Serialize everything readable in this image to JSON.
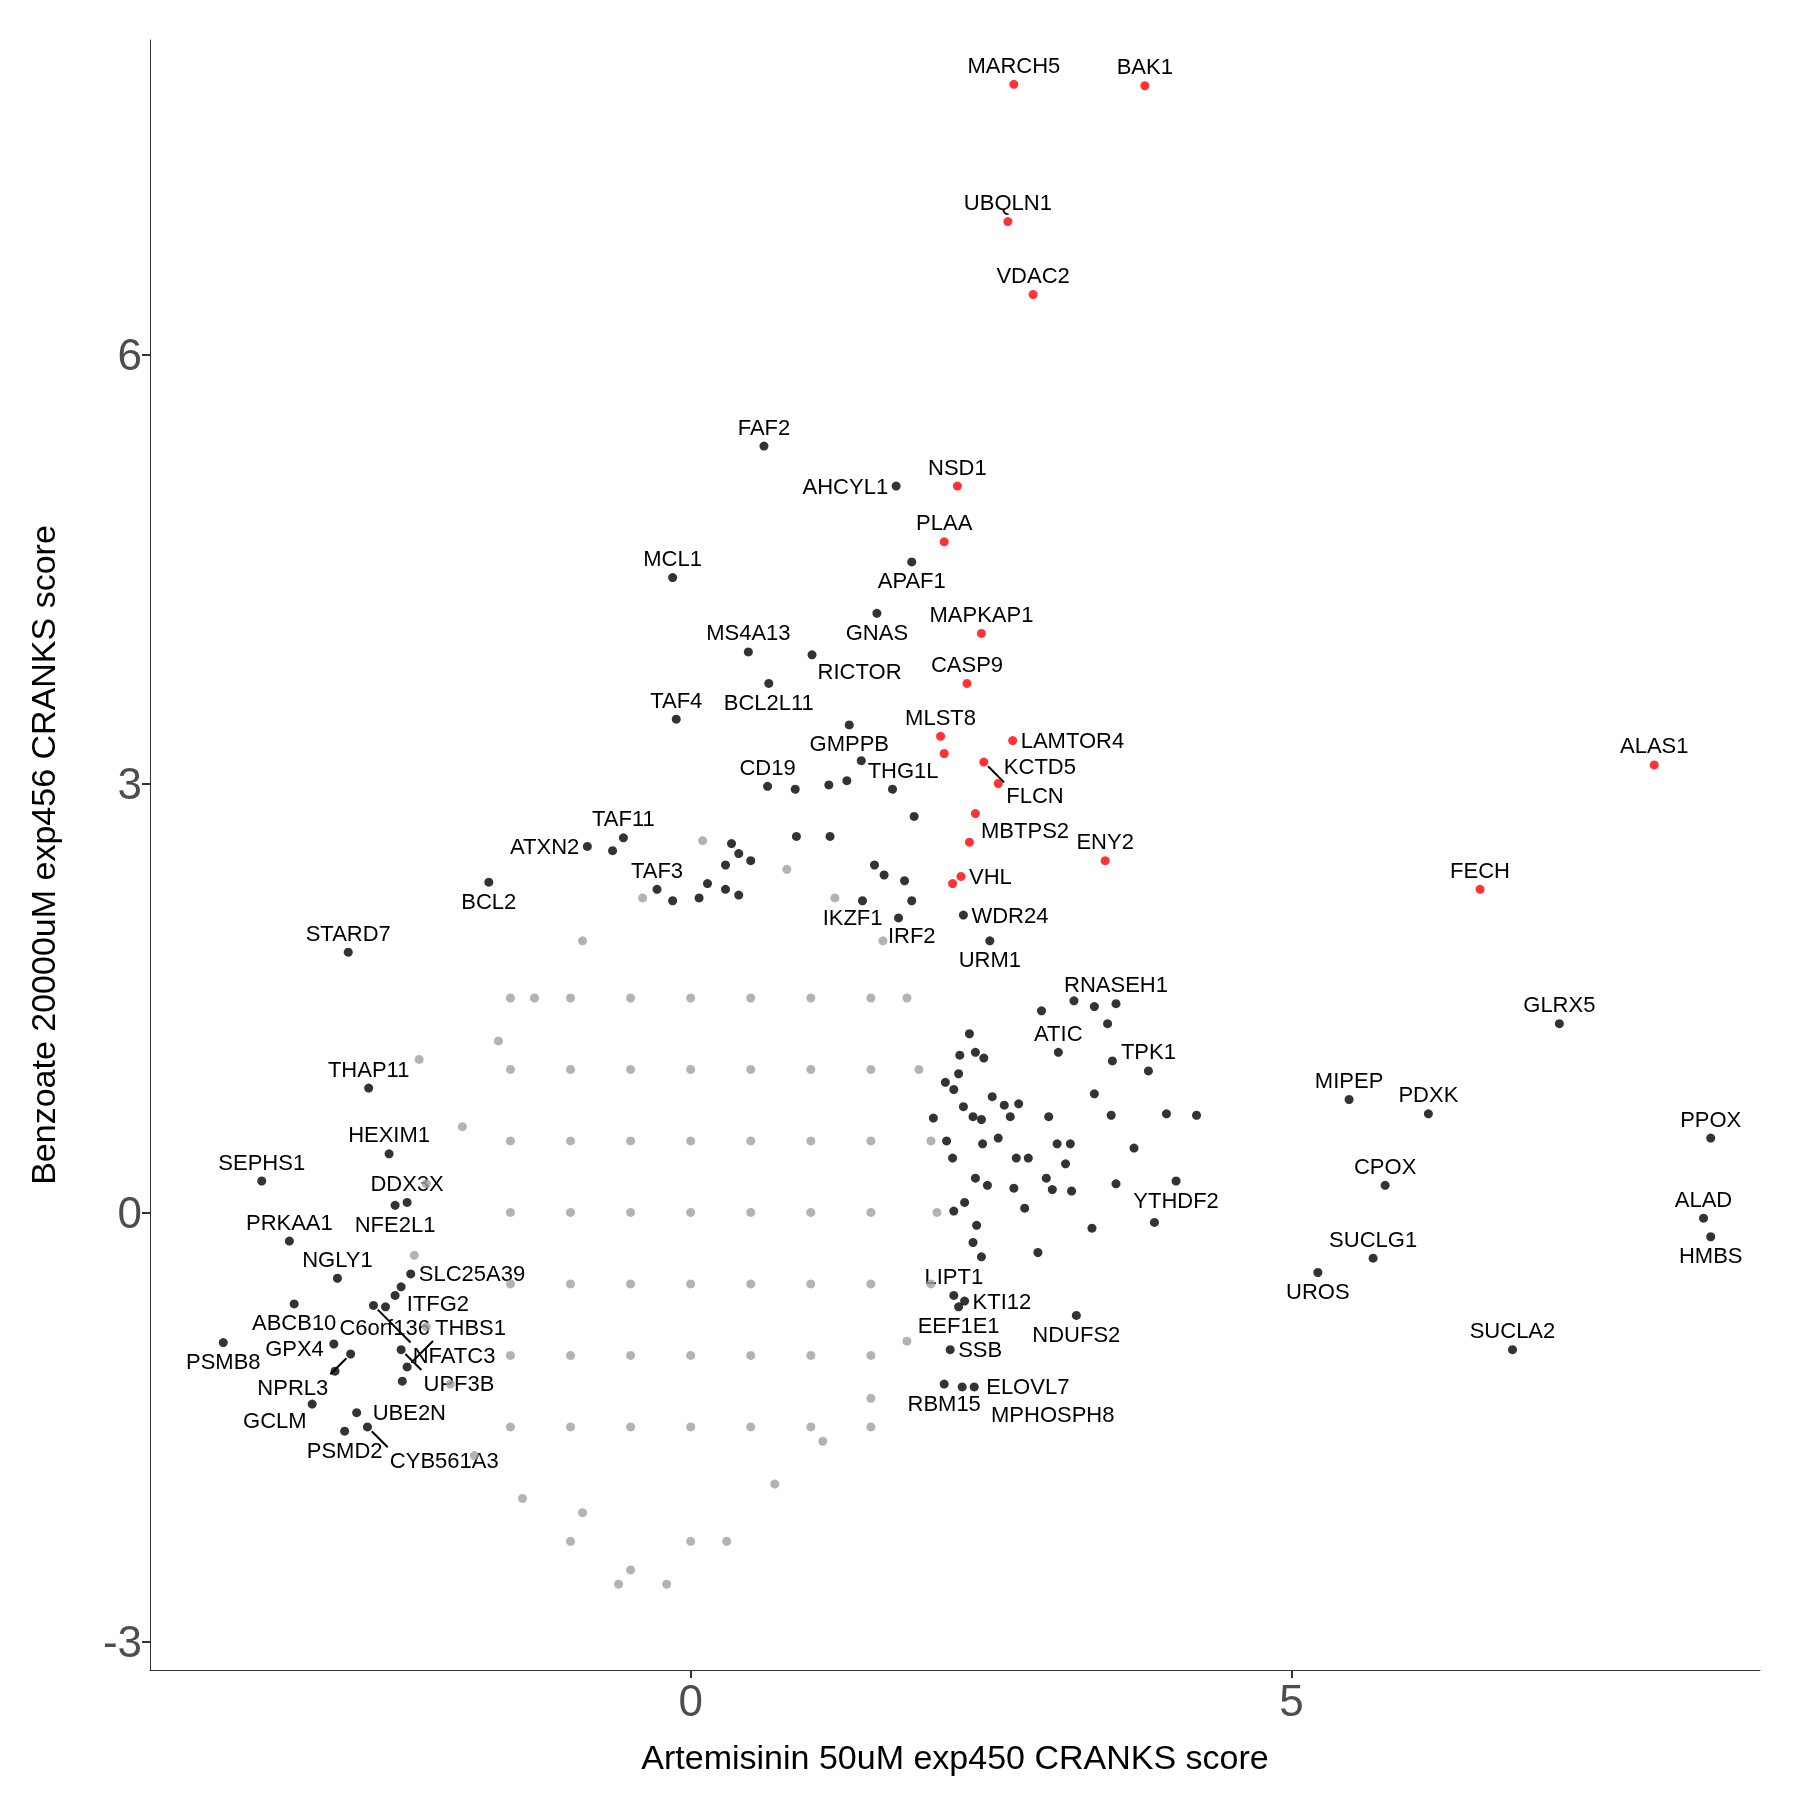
{
  "chart_data": {
    "type": "scatter",
    "xlabel": "Artemisinin 50uM exp450 CRANKS score",
    "ylabel": "Benzoate 20000uM exp456 CRANKS score",
    "xlim": [
      -4.5,
      8.9
    ],
    "ylim": [
      -3.2,
      8.2
    ],
    "xticks": [
      0,
      5
    ],
    "yticks": [
      -3,
      0,
      3,
      6
    ],
    "grid": false,
    "marker": "circle",
    "series": [
      {
        "color": "#a0a0a0",
        "x": [
          -0.2,
          0.3,
          0.7,
          1.1,
          1.5,
          1.8,
          2.0,
          2.05,
          2.0,
          1.9,
          1.8,
          1.6,
          1.2,
          0.8,
          0.1,
          -0.4,
          -0.9,
          -1.3,
          -1.6,
          -2.26,
          -1.9,
          -2.2,
          -2.3,
          -2.2,
          -2.0,
          -1.8,
          -1.4,
          -1.0,
          -0.5,
          -0.9,
          -0.6,
          0.0,
          -1.5,
          -1.0,
          -0.5,
          0,
          0.5,
          1.0,
          1.5,
          -1.5,
          -1.0,
          -0.5,
          0,
          0.5,
          1.0,
          1.5,
          -1.5,
          -1.0,
          -0.5,
          0,
          0.5,
          1.0,
          1.5,
          -1.5,
          -1.0,
          -0.5,
          0,
          0.5,
          1.0,
          1.5,
          -1.5,
          -1.0,
          -0.5,
          0,
          0.5,
          1.0,
          1.5,
          -1.5,
          -1.0,
          -0.5,
          0,
          0.5,
          1.0,
          1.5,
          -1.5,
          -1.0,
          -0.5,
          0,
          0.5,
          1.0,
          1.5
        ],
        "values": [
          -2.6,
          -2.3,
          -1.9,
          -1.6,
          -1.3,
          -0.9,
          -0.5,
          0,
          0.5,
          1.0,
          1.5,
          1.9,
          2.2,
          2.4,
          2.6,
          2.2,
          1.9,
          1.5,
          1.2,
          1.07,
          0.6,
          0.2,
          -0.3,
          -0.8,
          -1.2,
          -1.7,
          -2.0,
          -2.3,
          -2.5,
          -2.1,
          -2.6,
          -2.3,
          -1.5,
          -1.5,
          -1.5,
          -1.5,
          -1.5,
          -1.5,
          -1.5,
          -1.0,
          -1.0,
          -1.0,
          -1.0,
          -1.0,
          -1.0,
          -1.0,
          -0.5,
          -0.5,
          -0.5,
          -0.5,
          -0.5,
          -0.5,
          -0.5,
          0,
          0,
          0,
          0,
          0,
          0,
          0,
          0.5,
          0.5,
          0.5,
          0.5,
          0.5,
          0.5,
          0.5,
          1.0,
          1.0,
          1.0,
          1.0,
          1.0,
          1.0,
          1.0,
          1.5,
          1.5,
          1.5,
          1.5,
          1.5,
          1.5,
          1.5
        ]
      },
      {
        "color": "#000000",
        "x": [
          0.61,
          1.71,
          1.84,
          -0.15,
          1.55,
          1.01,
          0.48,
          0.65,
          -0.12,
          1.32,
          0.64,
          -0.86,
          -0.56,
          -1.68,
          -0.28,
          1.84,
          1.73,
          2.27,
          2.49,
          -2.85,
          -2.68,
          -2.51,
          -3.57,
          -2.36,
          -2.46,
          -3.34,
          -2.94,
          -3.3,
          -3.89,
          -2.97,
          -2.83,
          -2.96,
          -3.15,
          -2.88,
          -2.78,
          -2.69,
          -2.33,
          -2.41,
          -2.64,
          -2.41,
          -2.36,
          3.54,
          3.06,
          3.81,
          4.04,
          2.19,
          2.28,
          2.23,
          3.21,
          2.16,
          2.11,
          2.26,
          2.36,
          7.23,
          5.48,
          6.14,
          8.49,
          5.78,
          8.43,
          8.49,
          5.68,
          5.22,
          6.84,
          0.87,
          1.15,
          1.3,
          1.42,
          1.68,
          1.86,
          -0.65,
          0.88,
          1.16,
          0.34,
          0.5,
          0.4,
          0.29,
          -0.15,
          0.14,
          0.07,
          0.29,
          0.4,
          1.53,
          1.61,
          1.78,
          1.43,
          -2.54,
          -2.46,
          -2.4,
          3.19,
          3.36,
          3.47,
          2.92,
          3.51,
          2.32,
          2.37,
          2.44,
          2.24,
          2.23,
          2.19,
          2.27,
          2.35,
          2.42,
          2.51,
          2.61,
          2.73,
          2.66,
          2.98,
          3.36,
          3.5,
          3.96,
          4.21,
          3.69,
          3.54,
          3.34,
          3.86,
          3.17,
          2.96,
          2.71,
          2.81,
          2.37,
          2.47,
          2.69,
          2.78,
          2.28,
          2.19,
          2.38,
          2.35,
          2.42,
          2.89,
          3.01,
          3.12,
          3.05,
          3.16,
          2.56,
          2.43,
          2.18,
          2.13,
          2.02,
          2.12
        ],
        "values": [
          5.36,
          5.08,
          4.55,
          4.44,
          4.19,
          3.9,
          3.92,
          3.7,
          3.45,
          3.41,
          2.98,
          2.56,
          2.62,
          2.31,
          2.26,
          2.18,
          2.06,
          2.08,
          1.9,
          1.82,
          0.87,
          0.41,
          0.22,
          0.07,
          0.05,
          -0.2,
          -0.46,
          -0.64,
          -0.91,
          -0.92,
          -0.99,
          -1.11,
          -1.34,
          -1.53,
          -1.4,
          -1.5,
          -0.43,
          -0.52,
          -0.65,
          -0.96,
          -1.08,
          1.46,
          1.12,
          0.99,
          0.22,
          -0.58,
          -0.62,
          -0.66,
          -0.72,
          -0.96,
          -1.2,
          -1.22,
          -1.22,
          1.32,
          0.79,
          0.69,
          0.52,
          0.19,
          -0.04,
          -0.17,
          -0.32,
          -0.42,
          -0.96,
          2.96,
          2.99,
          3.02,
          3.16,
          2.96,
          2.77,
          2.53,
          2.63,
          2.63,
          2.58,
          2.46,
          2.51,
          2.43,
          2.18,
          2.3,
          2.2,
          2.26,
          2.22,
          2.43,
          2.36,
          2.32,
          2.18,
          -0.66,
          -0.58,
          -1.18,
          1.48,
          1.44,
          1.32,
          1.41,
          1.06,
          1.25,
          1.12,
          1.08,
          1.1,
          0.97,
          0.86,
          0.74,
          0.67,
          0.65,
          0.81,
          0.75,
          0.76,
          0.67,
          0.67,
          0.83,
          0.68,
          0.69,
          0.68,
          0.45,
          0.2,
          -0.11,
          -0.07,
          0.15,
          0.24,
          0.38,
          0.38,
          0.24,
          0.19,
          0.17,
          0.03,
          0.07,
          0.01,
          -0.09,
          -0.21,
          -0.31,
          -0.28,
          0.16,
          0.34,
          0.48,
          0.48,
          0.52,
          0.48,
          0.38,
          0.5,
          0.66,
          0.91
        ]
      },
      {
        "color": "#ff0000",
        "x": [
          2.69,
          3.78,
          2.64,
          2.85,
          2.22,
          2.11,
          2.42,
          2.3,
          2.08,
          2.68,
          2.11,
          2.44,
          2.56,
          2.37,
          2.25,
          3.45,
          8.02,
          6.57,
          2.32,
          2.18
        ],
        "values": [
          7.89,
          7.88,
          6.93,
          6.42,
          5.08,
          4.69,
          4.05,
          3.7,
          3.33,
          3.3,
          3.21,
          3.15,
          3.0,
          2.79,
          2.35,
          2.46,
          3.13,
          2.26,
          2.59,
          2.3
        ]
      }
    ],
    "annotations": [
      {
        "text": "MARCH5",
        "x": 2.69,
        "y": 7.89
      },
      {
        "text": "BAK1",
        "x": 3.78,
        "y": 7.88
      },
      {
        "text": "UBQLN1",
        "x": 2.64,
        "y": 6.93
      },
      {
        "text": "VDAC2",
        "x": 2.85,
        "y": 6.42
      },
      {
        "text": "NSD1",
        "x": 2.22,
        "y": 5.08
      },
      {
        "text": "PLAA",
        "x": 2.11,
        "y": 4.69
      },
      {
        "text": "MAPKAP1",
        "x": 2.42,
        "y": 4.05
      },
      {
        "text": "CASP9",
        "x": 2.3,
        "y": 3.7
      },
      {
        "text": "MLST8",
        "x": 2.08,
        "y": 3.33
      },
      {
        "text": "LAMTOR4",
        "x": 2.68,
        "y": 3.3
      },
      {
        "text": "THG1L",
        "x": 2.11,
        "y": 3.21
      },
      {
        "text": "FLCN",
        "x": 2.44,
        "y": 3.15
      },
      {
        "text": "KCTD5",
        "x": 2.56,
        "y": 3.0
      },
      {
        "text": "MBTPS2",
        "x": 2.37,
        "y": 2.79
      },
      {
        "text": "VHL",
        "x": 2.25,
        "y": 2.35
      },
      {
        "text": "ENY2",
        "x": 3.45,
        "y": 2.46
      },
      {
        "text": "ALAS1",
        "x": 8.02,
        "y": 3.13
      },
      {
        "text": "FECH",
        "x": 6.57,
        "y": 2.26
      },
      {
        "text": "FAF2",
        "x": 0.61,
        "y": 5.36
      },
      {
        "text": "AHCYL1",
        "x": 1.71,
        "y": 5.08
      },
      {
        "text": "APAF1",
        "x": 1.84,
        "y": 4.55
      },
      {
        "text": "MCL1",
        "x": -0.15,
        "y": 4.44
      },
      {
        "text": "GNAS",
        "x": 1.55,
        "y": 4.19
      },
      {
        "text": "RICTOR",
        "x": 1.01,
        "y": 3.9
      },
      {
        "text": "MS4A13",
        "x": 0.48,
        "y": 3.92
      },
      {
        "text": "BCL2L11",
        "x": 0.65,
        "y": 3.7
      },
      {
        "text": "TAF4",
        "x": -0.12,
        "y": 3.45
      },
      {
        "text": "GMPPB",
        "x": 1.32,
        "y": 3.41
      },
      {
        "text": "CD19",
        "x": 0.64,
        "y": 2.98
      },
      {
        "text": "ATXN2",
        "x": -0.86,
        "y": 2.56
      },
      {
        "text": "TAF11",
        "x": -0.56,
        "y": 2.62
      },
      {
        "text": "BCL2",
        "x": -1.68,
        "y": 2.31
      },
      {
        "text": "TAF3",
        "x": -0.28,
        "y": 2.26
      },
      {
        "text": "IRF2",
        "x": 1.84,
        "y": 2.18
      },
      {
        "text": "IKZF1",
        "x": 1.73,
        "y": 2.06
      },
      {
        "text": "WDR24",
        "x": 2.27,
        "y": 2.08
      },
      {
        "text": "URM1",
        "x": 2.49,
        "y": 1.9
      },
      {
        "text": "STARD7",
        "x": -2.85,
        "y": 1.82
      },
      {
        "text": "THAP11",
        "x": -2.68,
        "y": 0.87
      },
      {
        "text": "HEXIM1",
        "x": -2.51,
        "y": 0.41
      },
      {
        "text": "SEPHS1",
        "x": -3.57,
        "y": 0.22
      },
      {
        "text": "DDX3X",
        "x": -2.36,
        "y": 0.07
      },
      {
        "text": "NFE2L1",
        "x": -2.46,
        "y": 0.05
      },
      {
        "text": "PRKAA1",
        "x": -3.34,
        "y": -0.2
      },
      {
        "text": "NGLY1",
        "x": -2.94,
        "y": -0.46
      },
      {
        "text": "ABCB10",
        "x": -3.3,
        "y": -0.64
      },
      {
        "text": "PSMB8",
        "x": -3.89,
        "y": -0.91
      },
      {
        "text": "C6orf136",
        "x": -2.97,
        "y": -0.92
      },
      {
        "text": "NPRL3",
        "x": -2.83,
        "y": -0.99
      },
      {
        "text": "GPX4",
        "x": -2.96,
        "y": -1.11
      },
      {
        "text": "GCLM",
        "x": -3.15,
        "y": -1.34
      },
      {
        "text": "PSMD2",
        "x": -2.88,
        "y": -1.53
      },
      {
        "text": "UBE2N",
        "x": -2.78,
        "y": -1.4
      },
      {
        "text": "CYB561A3",
        "x": -2.69,
        "y": -1.5
      },
      {
        "text": "SLC25A39",
        "x": -2.33,
        "y": -0.43
      },
      {
        "text": "ITFG2",
        "x": -2.41,
        "y": -0.52
      },
      {
        "text": "NFATC3",
        "x": -2.64,
        "y": -0.65
      },
      {
        "text": "UPF3B",
        "x": -2.41,
        "y": -0.96
      },
      {
        "text": "THBS1",
        "x": -2.36,
        "y": -1.08
      },
      {
        "text": "RNASEH1",
        "x": 3.54,
        "y": 1.46
      },
      {
        "text": "ATIC",
        "x": 3.06,
        "y": 1.12
      },
      {
        "text": "TPK1",
        "x": 3.81,
        "y": 0.99
      },
      {
        "text": "YTHDF2",
        "x": 4.04,
        "y": 0.22
      },
      {
        "text": "LIPT1",
        "x": 2.19,
        "y": -0.58
      },
      {
        "text": "KTI12",
        "x": 2.28,
        "y": -0.62
      },
      {
        "text": "EEF1E1",
        "x": 2.23,
        "y": -0.66
      },
      {
        "text": "NDUFS2",
        "x": 3.21,
        "y": -0.72
      },
      {
        "text": "SSB",
        "x": 2.16,
        "y": -0.96
      },
      {
        "text": "RBM15",
        "x": 2.11,
        "y": -1.2
      },
      {
        "text": "ELOVL7",
        "x": 2.26,
        "y": -1.22
      },
      {
        "text": "MPHOSPH8",
        "x": 2.36,
        "y": -1.22
      },
      {
        "text": "GLRX5",
        "x": 7.23,
        "y": 1.32
      },
      {
        "text": "MIPEP",
        "x": 5.48,
        "y": 0.79
      },
      {
        "text": "PDXK",
        "x": 6.14,
        "y": 0.69
      },
      {
        "text": "PPOX",
        "x": 8.49,
        "y": 0.52
      },
      {
        "text": "CPOX",
        "x": 5.78,
        "y": 0.19
      },
      {
        "text": "ALAD",
        "x": 8.43,
        "y": -0.04
      },
      {
        "text": "HMBS",
        "x": 8.49,
        "y": -0.17
      },
      {
        "text": "SUCLG1",
        "x": 5.68,
        "y": -0.32
      },
      {
        "text": "UROS",
        "x": 5.22,
        "y": -0.42
      },
      {
        "text": "SUCLA2",
        "x": 6.84,
        "y": -0.96
      }
    ]
  }
}
